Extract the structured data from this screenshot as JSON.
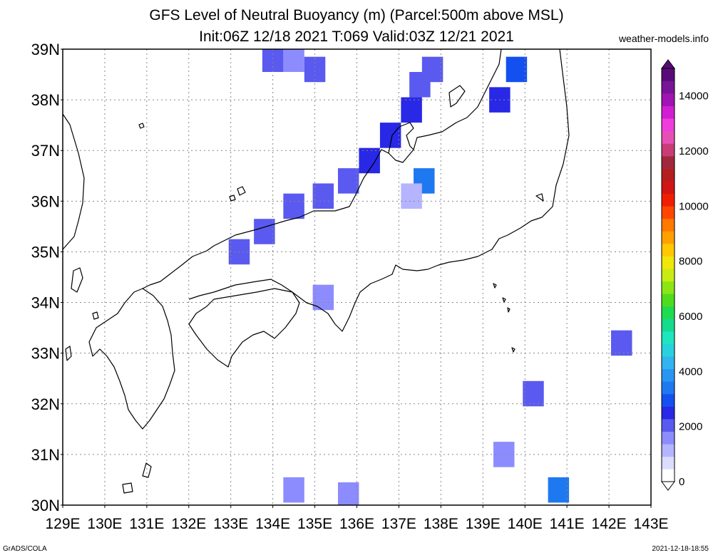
{
  "title": {
    "line1": "GFS Level of Neutral Buoyancy (m) (Parcel:500m above MSL)",
    "line2": "Init:06Z 12/18 2021 T:069 Valid:03Z 12/21 2021"
  },
  "site": "weather-models.info",
  "footer": {
    "left": "GrADS/COLA",
    "right": "2021-12-18-18:55"
  },
  "lat_labels": [
    "30N",
    "31N",
    "32N",
    "33N",
    "34N",
    "35N",
    "36N",
    "37N",
    "38N",
    "39N"
  ],
  "lon_labels": [
    "129E",
    "130E",
    "131E",
    "132E",
    "133E",
    "134E",
    "135E",
    "136E",
    "137E",
    "138E",
    "139E",
    "140E",
    "141E",
    "142E",
    "143E"
  ],
  "colorbar": {
    "labels": [
      "0",
      "2000",
      "4000",
      "6000",
      "8000",
      "10000",
      "12000",
      "14000"
    ],
    "colors": [
      "#ffffff",
      "#dcdcff",
      "#b4b4ff",
      "#8c8cff",
      "#5a5af0",
      "#2828e6",
      "#1450f0",
      "#1e78f0",
      "#2896f0",
      "#32b4f0",
      "#28d2dc",
      "#1ee6be",
      "#14dc8c",
      "#1edc50",
      "#50dc1e",
      "#8ce614",
      "#c8eb14",
      "#f0e60a",
      "#ffc800",
      "#ffa000",
      "#ff7800",
      "#ff4600",
      "#f01e00",
      "#d21414",
      "#b41e1e",
      "#a0283c",
      "#c83c78",
      "#e650b4",
      "#f03cdc",
      "#d21ed2",
      "#a014b4",
      "#781496",
      "#5a0a78"
    ]
  },
  "map_data": {
    "extent": {
      "lon": [
        129,
        143
      ],
      "lat": [
        30,
        39
      ]
    },
    "field": "Level of Neutral Buoyancy (m)",
    "grid_cells": [
      {
        "lon": 134.0,
        "lat": 38.8,
        "v": 1900
      },
      {
        "lon": 134.5,
        "lat": 38.8,
        "v": 1800
      },
      {
        "lon": 135.0,
        "lat": 38.6,
        "v": 1900
      },
      {
        "lon": 137.5,
        "lat": 38.3,
        "v": 2100
      },
      {
        "lon": 137.8,
        "lat": 38.6,
        "v": 2200
      },
      {
        "lon": 137.3,
        "lat": 37.8,
        "v": 2400
      },
      {
        "lon": 136.8,
        "lat": 37.3,
        "v": 2600
      },
      {
        "lon": 136.3,
        "lat": 36.8,
        "v": 2300
      },
      {
        "lon": 135.8,
        "lat": 36.4,
        "v": 2200
      },
      {
        "lon": 135.2,
        "lat": 36.1,
        "v": 2100
      },
      {
        "lon": 134.5,
        "lat": 35.9,
        "v": 1900
      },
      {
        "lon": 133.8,
        "lat": 35.4,
        "v": 2000
      },
      {
        "lon": 133.2,
        "lat": 35.0,
        "v": 2100
      },
      {
        "lon": 139.8,
        "lat": 38.6,
        "v": 3100
      },
      {
        "lon": 139.4,
        "lat": 38.0,
        "v": 2700
      },
      {
        "lon": 137.6,
        "lat": 36.4,
        "v": 3300
      },
      {
        "lon": 137.3,
        "lat": 36.1,
        "v": 1200
      },
      {
        "lon": 135.2,
        "lat": 34.1,
        "v": 1800
      },
      {
        "lon": 140.2,
        "lat": 32.2,
        "v": 2000
      },
      {
        "lon": 142.3,
        "lat": 33.2,
        "v": 2100
      },
      {
        "lon": 140.8,
        "lat": 30.3,
        "v": 3200
      },
      {
        "lon": 135.8,
        "lat": 30.2,
        "v": 1800
      },
      {
        "lon": 134.5,
        "lat": 30.3,
        "v": 1700
      },
      {
        "lon": 139.5,
        "lat": 31.0,
        "v": 1700
      }
    ]
  }
}
